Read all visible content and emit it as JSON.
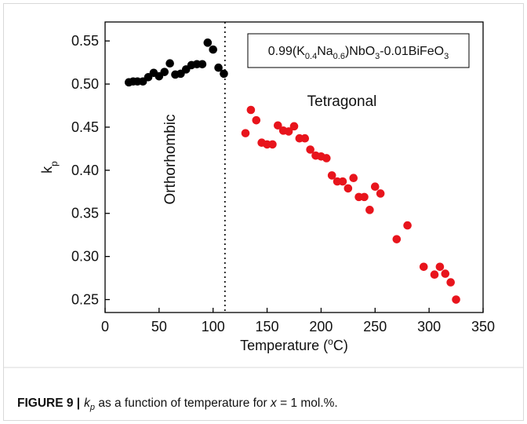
{
  "chart_data": {
    "type": "scatter",
    "xlim": [
      0,
      350
    ],
    "ylim": [
      0.235,
      0.572
    ],
    "xticks": [
      0,
      50,
      100,
      150,
      200,
      250,
      300,
      350
    ],
    "yticks": [
      0.25,
      {
        "value": 0.3,
        "label": "0.30"
      },
      0.35,
      {
        "value": 0.4,
        "label": "0.40"
      },
      0.45,
      {
        "value": 0.5,
        "label": "0.50"
      },
      0.55
    ],
    "x_label": [
      "Temperature (",
      "o",
      "C)"
    ],
    "y_label": [
      "k",
      "p"
    ],
    "series": [
      {
        "color": "#000000",
        "x": [
          22,
          26,
          30,
          35,
          40,
          45,
          50,
          55,
          60,
          65,
          70,
          75,
          80,
          85,
          90,
          95,
          100,
          105,
          110
        ],
        "values": [
          0.502,
          0.503,
          0.503,
          0.503,
          0.508,
          0.513,
          0.509,
          0.514,
          0.524,
          0.511,
          0.512,
          0.517,
          0.522,
          0.523,
          0.523,
          0.548,
          0.54,
          0.519,
          0.512
        ]
      },
      {
        "color": "#e8141c",
        "x": [
          130,
          135,
          140,
          145,
          150,
          155,
          160,
          165,
          170,
          175,
          180,
          185,
          190,
          195,
          200,
          205,
          210,
          215,
          220,
          225,
          230,
          235,
          240,
          245,
          250,
          255,
          270,
          280,
          295,
          305,
          310,
          315,
          320,
          325
        ],
        "values": [
          0.443,
          0.47,
          0.458,
          0.432,
          0.43,
          0.43,
          0.452,
          0.446,
          0.445,
          0.451,
          0.437,
          0.437,
          0.424,
          0.417,
          0.416,
          0.414,
          0.394,
          0.387,
          0.387,
          0.379,
          0.391,
          0.369,
          0.369,
          0.354,
          0.381,
          0.373,
          0.32,
          0.336,
          0.288,
          0.279,
          0.288,
          0.28,
          0.27,
          0.25
        ]
      }
    ],
    "annotations": {
      "box": [
        "0.99(K",
        "0.4",
        "Na",
        "0.6",
        ")NbO",
        "3",
        "-0.01BiFeO",
        "3"
      ],
      "phases": [
        "Orthorhombic",
        "Tetragonal"
      ],
      "boundary_x": 111
    }
  },
  "caption": {
    "label": "FIGURE 9 |",
    "parts": [
      "k",
      "p",
      " as a function of temperature for ",
      "x",
      " = 1 mol.%."
    ]
  }
}
